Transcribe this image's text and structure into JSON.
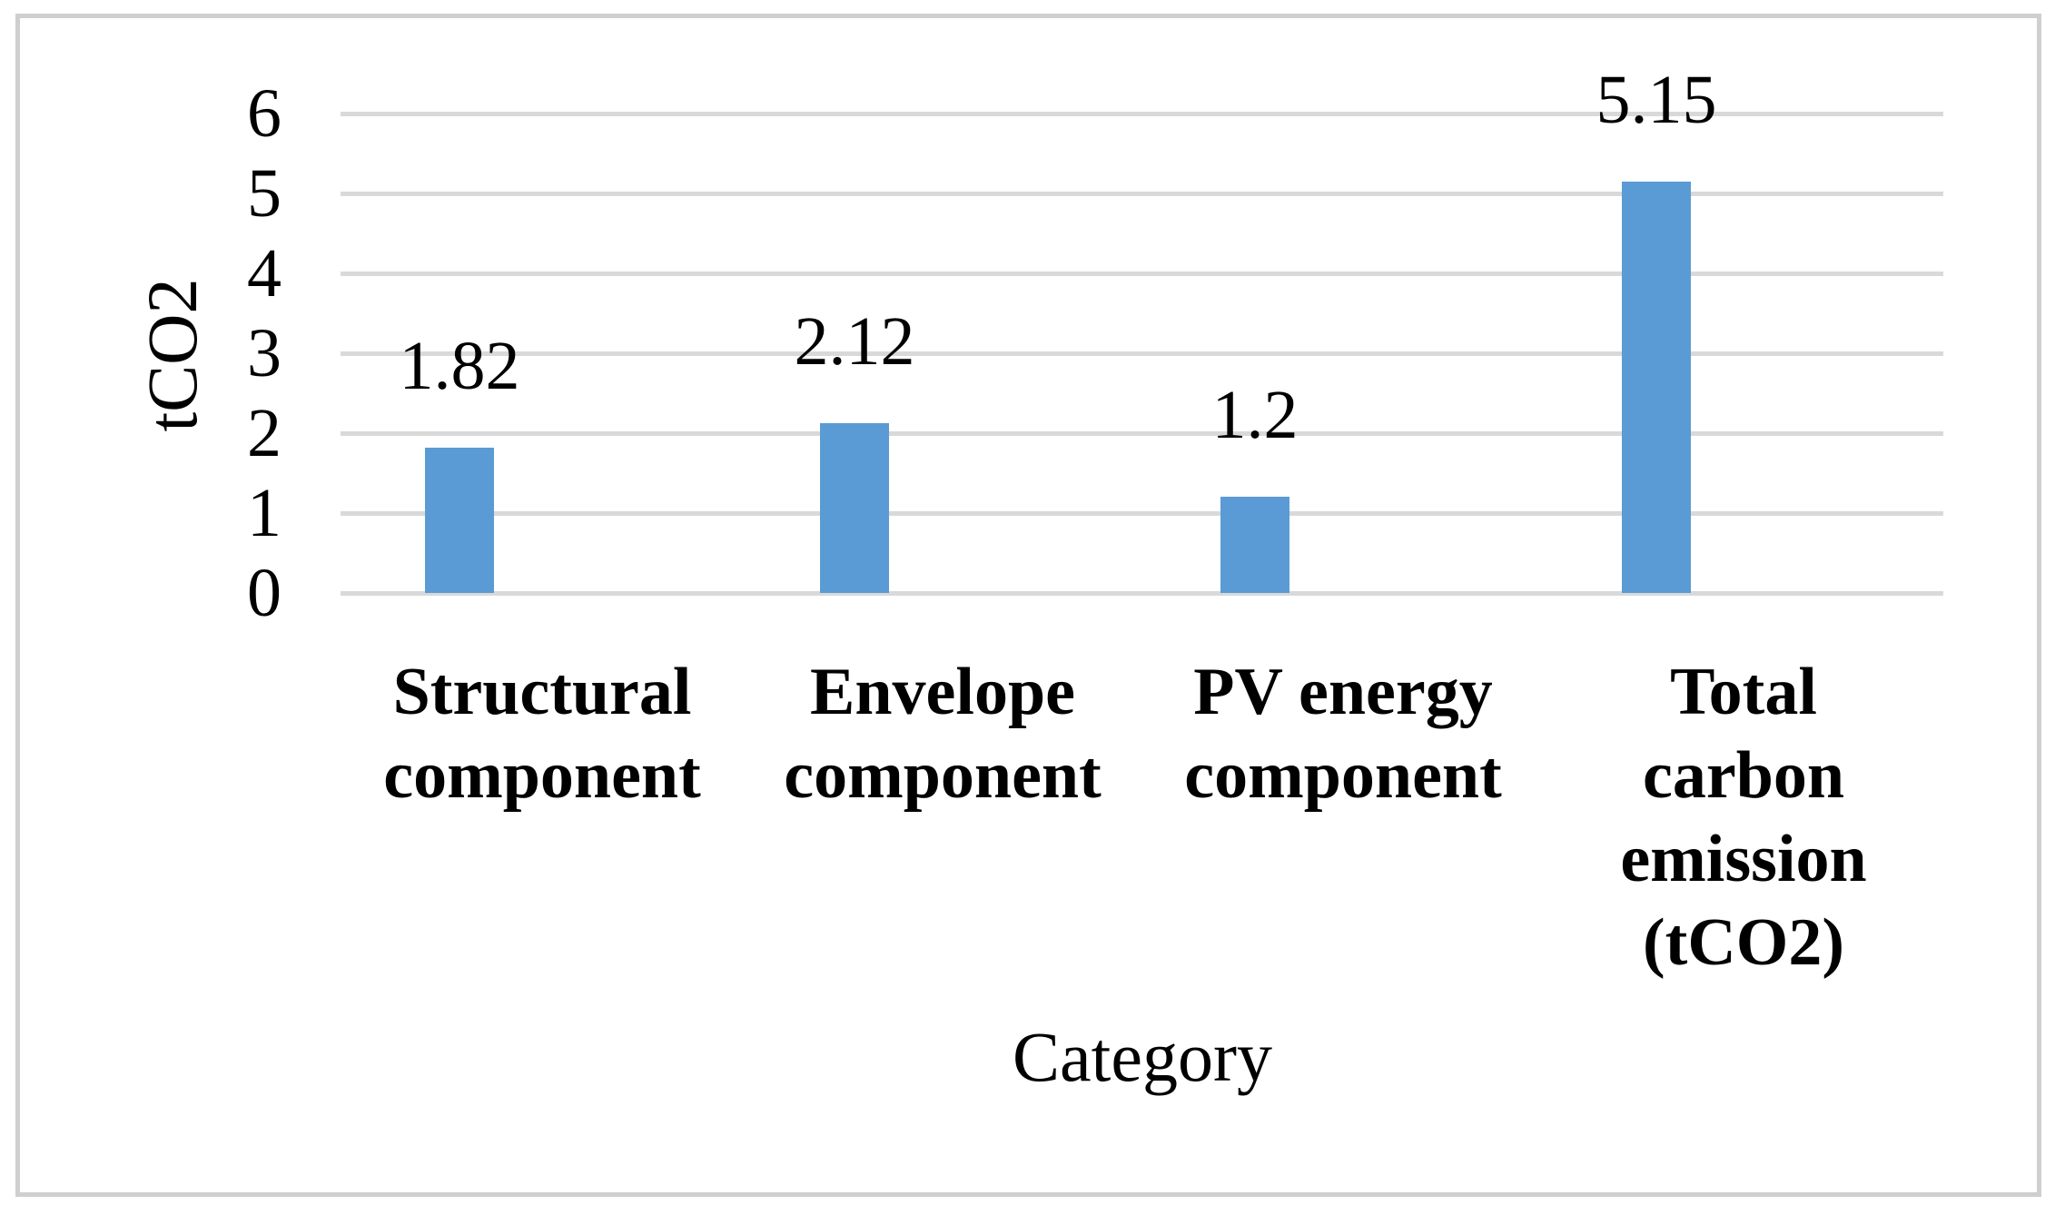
{
  "chart_data": {
    "type": "bar",
    "title": "",
    "ylabel": "tCO2",
    "xlabel": "Category",
    "ylim": [
      0,
      6
    ],
    "yticks": [
      0,
      1,
      2,
      3,
      4,
      5,
      6
    ],
    "grid": true,
    "legend": false,
    "bar_color": "#5B9BD5",
    "gridline_color": "#D9D9D9",
    "frame_color": "#CFCFCF",
    "categories": [
      "Structural component",
      "Envelope component",
      "PV energy component",
      "Total carbon emission (tCO2)"
    ],
    "category_label_lines": [
      [
        "Structural",
        "component"
      ],
      [
        "Envelope",
        "component"
      ],
      [
        "PV energy",
        "component"
      ],
      [
        "Total",
        "carbon",
        "emission",
        "(tCO2)"
      ]
    ],
    "values": [
      1.82,
      2.12,
      1.2,
      5.15
    ],
    "data_labels": [
      "1.82",
      "2.12",
      "1.2",
      "5.15"
    ]
  }
}
